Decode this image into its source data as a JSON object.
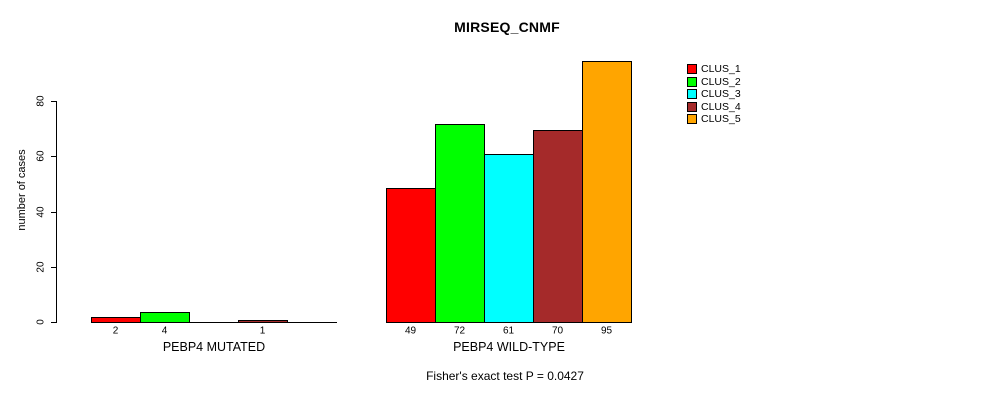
{
  "title": "MIRSEQ_CNMF",
  "subtitle": "Fisher's exact test P = 0.0427",
  "ylabel": "number of cases",
  "legend": {
    "items": [
      {
        "label": "CLUS_1",
        "color": "#FF0000"
      },
      {
        "label": "CLUS_2",
        "color": "#00FF00"
      },
      {
        "label": "CLUS_3",
        "color": "#00FFFF"
      },
      {
        "label": "CLUS_4",
        "color": "#A52A2A"
      },
      {
        "label": "CLUS_5",
        "color": "#FFA500"
      }
    ]
  },
  "chart_data": {
    "type": "bar",
    "title": "MIRSEQ_CNMF",
    "ylabel": "number of cases",
    "xlabel": "",
    "ylim": [
      0,
      95
    ],
    "yticks": [
      0,
      20,
      40,
      60,
      80
    ],
    "grid": false,
    "legend_position": "right",
    "series_names": [
      "CLUS_1",
      "CLUS_2",
      "CLUS_3",
      "CLUS_4",
      "CLUS_5"
    ],
    "series_colors": [
      "#FF0000",
      "#00FF00",
      "#00FFFF",
      "#A52A2A",
      "#FFA500"
    ],
    "groups": [
      {
        "label": "PEBP4 MUTATED",
        "values": [
          2,
          4,
          0,
          1,
          0
        ],
        "bar_labels": [
          "2",
          "4",
          "",
          "1",
          ""
        ]
      },
      {
        "label": "PEBP4 WILD-TYPE",
        "values": [
          49,
          72,
          61,
          70,
          95
        ],
        "bar_labels": [
          "49",
          "72",
          "61",
          "70",
          "95"
        ]
      }
    ],
    "annotation": "Fisher's exact test P = 0.0427"
  }
}
